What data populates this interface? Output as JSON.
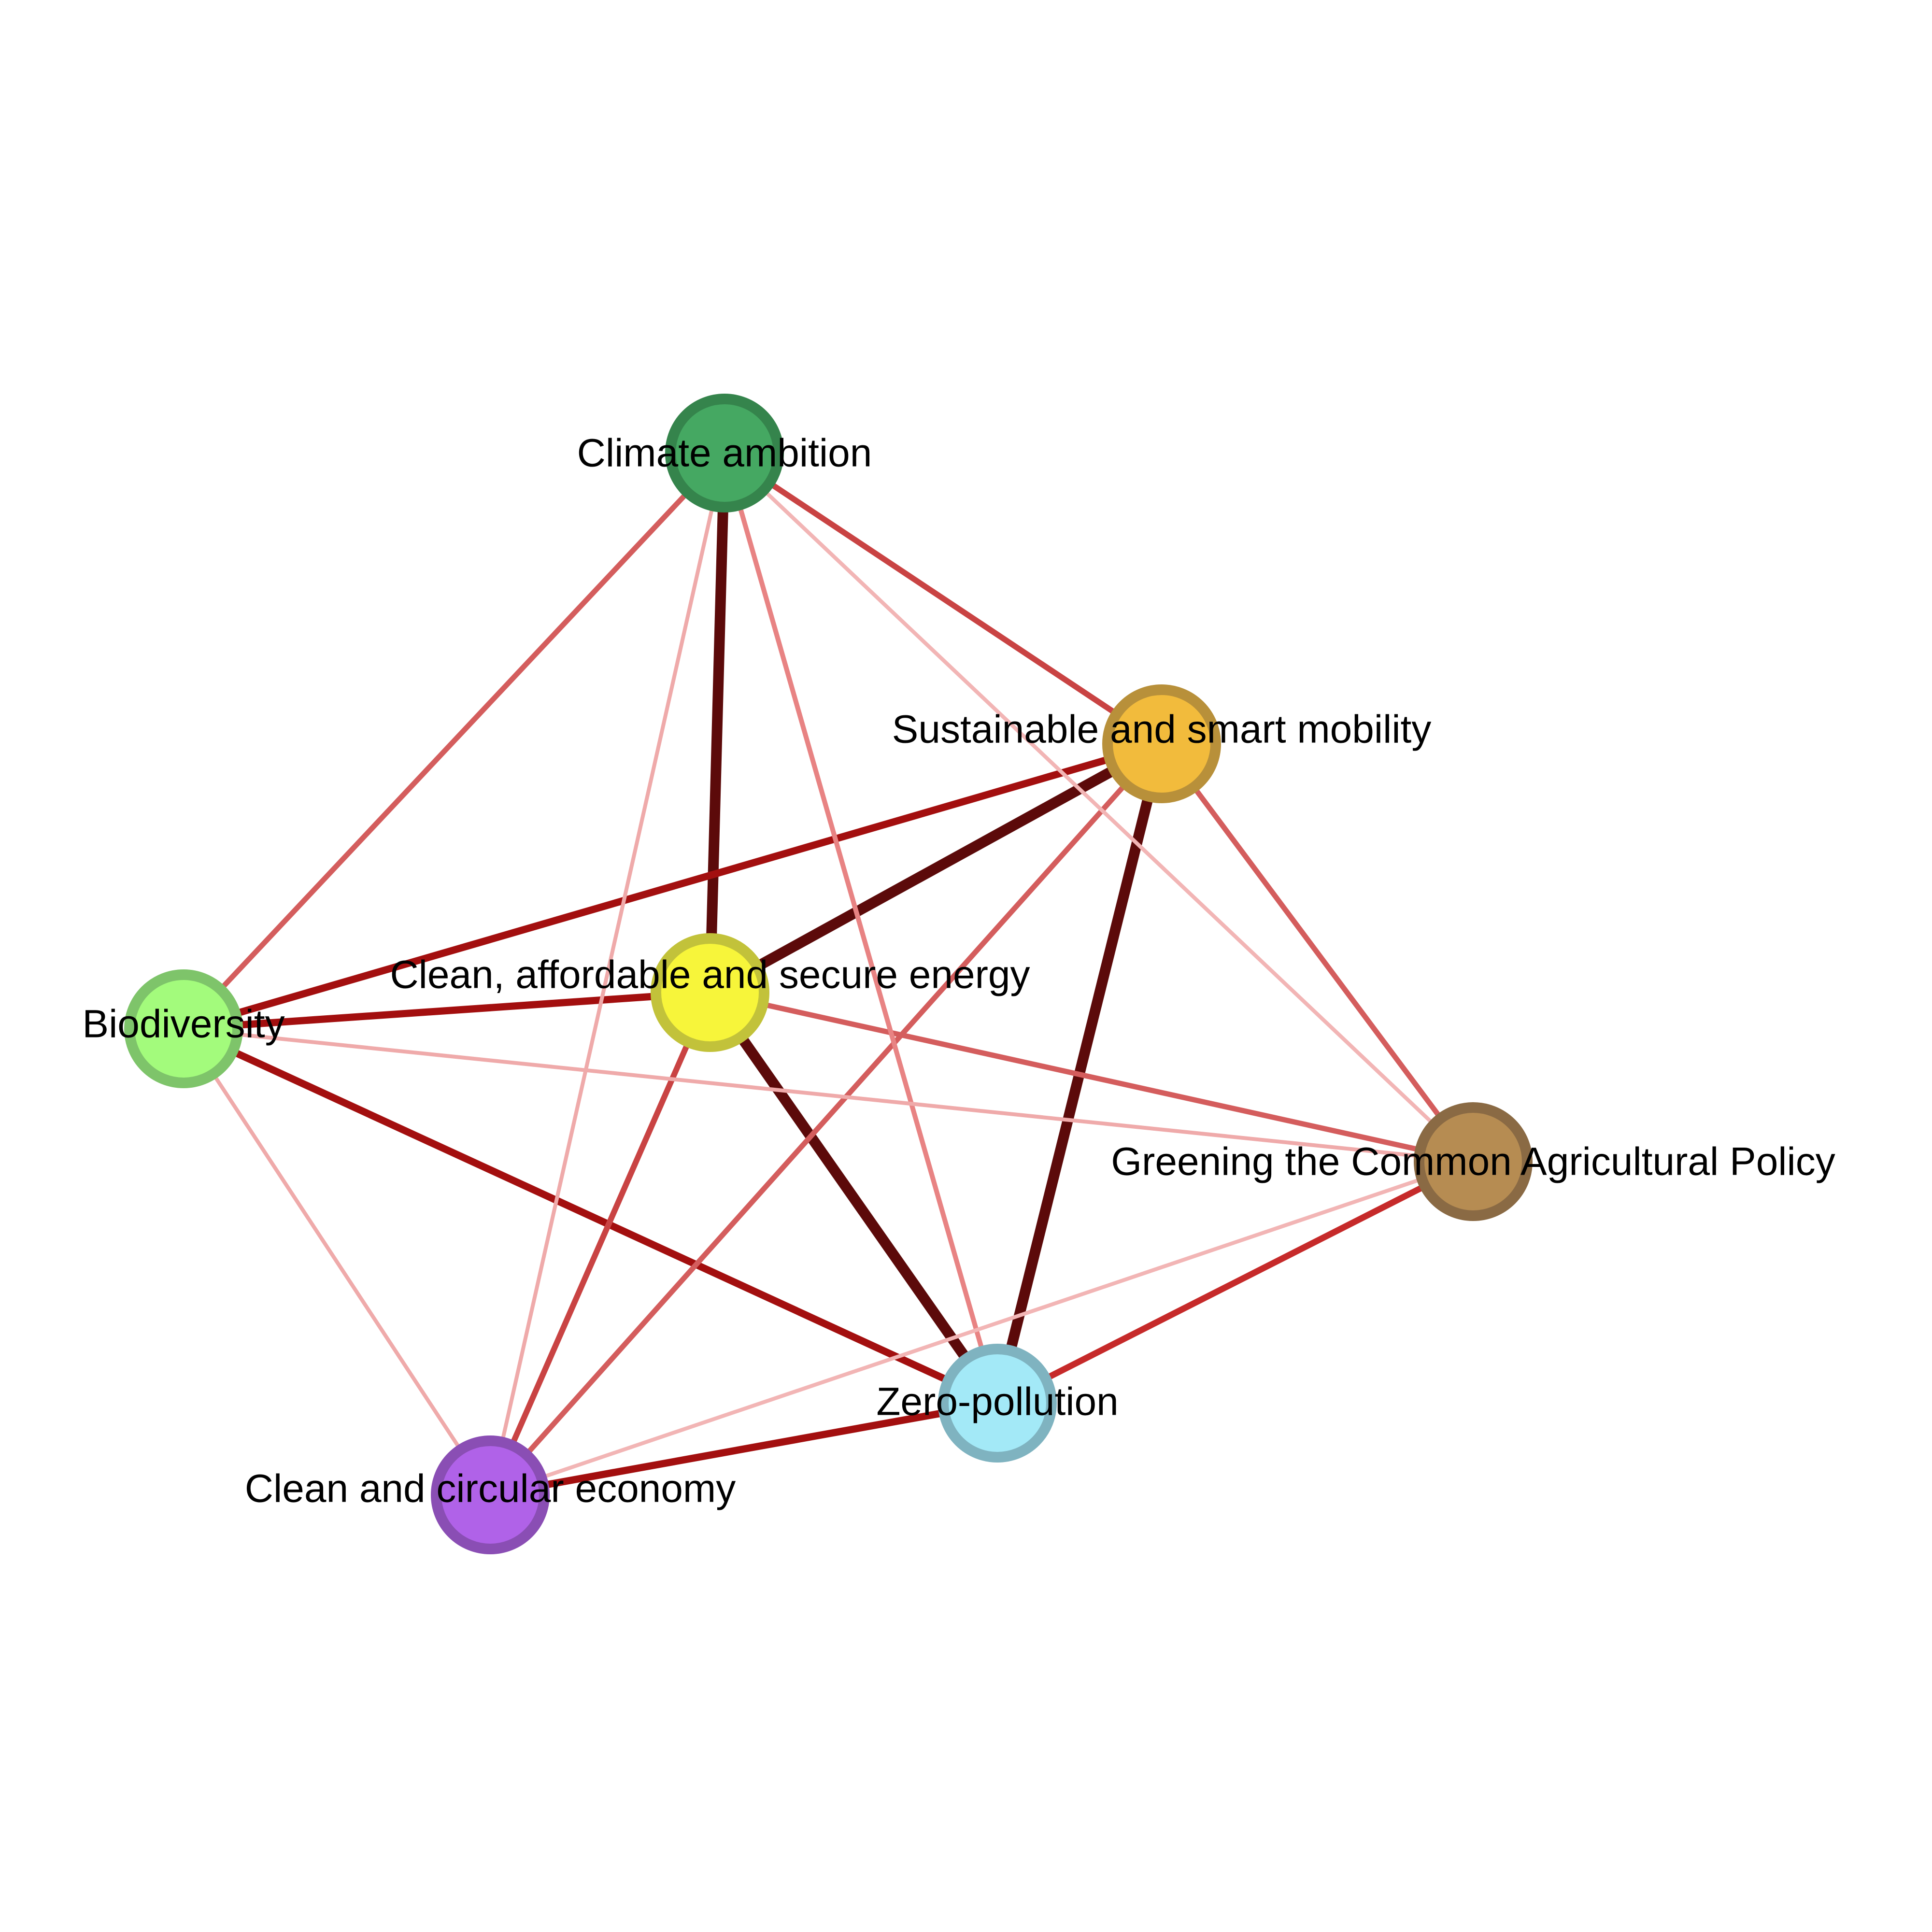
{
  "nodes": [
    {
      "id": "climate",
      "label": "Climate ambition",
      "fill": "#45a862",
      "stroke": "#35844c"
    },
    {
      "id": "mobility",
      "label": "Sustainable and smart mobility",
      "fill": "#f2bb3c",
      "stroke": "#b8903a"
    },
    {
      "id": "energy",
      "label": "Clean, affordable and secure energy",
      "fill": "#f7f53a",
      "stroke": "#c2c23a"
    },
    {
      "id": "biodiversity",
      "label": "Biodiversity",
      "fill": "#a3fb7c",
      "stroke": "#7ec46a"
    },
    {
      "id": "agri",
      "label": "Greening the Common Agricultural Policy",
      "fill": "#b68c52",
      "stroke": "#8a6a44"
    },
    {
      "id": "zero",
      "label": "Zero-pollution",
      "fill": "#a3e9f7",
      "stroke": "#7fb3c0"
    },
    {
      "id": "circular",
      "label": "Clean and circular economy",
      "fill": "#b062e8",
      "stroke": "#8a4eb4"
    }
  ],
  "edges": [
    {
      "source": "climate",
      "target": "energy",
      "color": "#5c0a0a"
    },
    {
      "source": "energy",
      "target": "mobility",
      "color": "#5c0a0a"
    },
    {
      "source": "mobility",
      "target": "zero",
      "color": "#5c0a0a"
    },
    {
      "source": "energy",
      "target": "zero",
      "color": "#5c0a0a"
    },
    {
      "source": "biodiversity",
      "target": "mobility",
      "color": "#a30f0f"
    },
    {
      "source": "biodiversity",
      "target": "energy",
      "color": "#a30f0f"
    },
    {
      "source": "biodiversity",
      "target": "zero",
      "color": "#a30f0f"
    },
    {
      "source": "circular",
      "target": "zero",
      "color": "#a30f0f"
    },
    {
      "source": "zero",
      "target": "agri",
      "color": "#c62a2a"
    },
    {
      "source": "climate",
      "target": "mobility",
      "color": "#c94343"
    },
    {
      "source": "climate",
      "target": "biodiversity",
      "color": "#d45d5d"
    },
    {
      "source": "energy",
      "target": "agri",
      "color": "#d45d5d"
    },
    {
      "source": "mobility",
      "target": "agri",
      "color": "#d45d5d"
    },
    {
      "source": "mobility",
      "target": "circular",
      "color": "#d45d5d"
    },
    {
      "source": "energy",
      "target": "circular",
      "color": "#c94343"
    },
    {
      "source": "climate",
      "target": "zero",
      "color": "#e88383"
    },
    {
      "source": "climate",
      "target": "circular",
      "color": "#efaaaa"
    },
    {
      "source": "climate",
      "target": "agri",
      "color": "#f2b5b5"
    },
    {
      "source": "biodiversity",
      "target": "agri",
      "color": "#efaaaa"
    },
    {
      "source": "biodiversity",
      "target": "circular",
      "color": "#efaaaa"
    },
    {
      "source": "circular",
      "target": "agri",
      "color": "#f2b5b5"
    }
  ]
}
